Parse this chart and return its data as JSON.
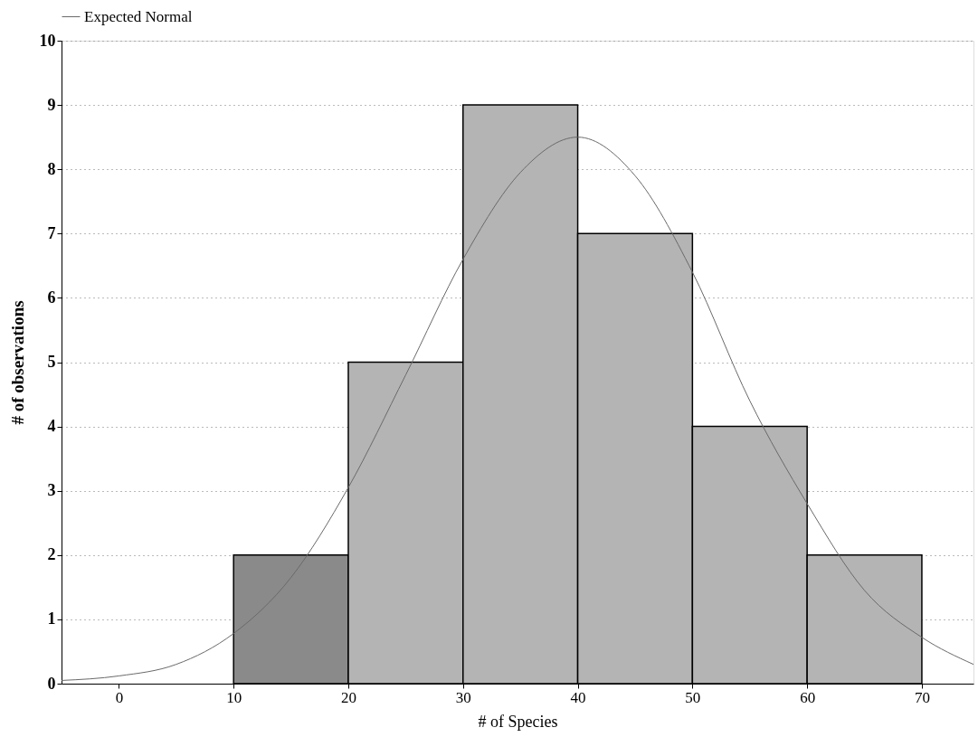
{
  "chart_data": {
    "type": "histogram",
    "xlabel": "# of Species",
    "ylabel": "# of observations",
    "bins": [
      10,
      20,
      30,
      40,
      50,
      60,
      70
    ],
    "values": [
      2,
      5,
      9,
      7,
      4,
      2
    ],
    "colors": [
      "#8a8a8a",
      "#b4b4b4",
      "#b4b4b4",
      "#b4b4b4",
      "#b4b4b4",
      "#b4b4b4"
    ],
    "series": [
      {
        "name": "Expected Normal",
        "type": "line",
        "color": "#6a6a6a",
        "line_style": "solid",
        "x": [
          -5,
          0,
          5,
          10,
          15,
          20,
          25,
          30,
          35,
          40,
          45,
          50,
          55,
          60,
          65,
          70,
          74.5
        ],
        "values": [
          0.05,
          0.12,
          0.3,
          0.78,
          1.65,
          3.05,
          4.8,
          6.6,
          7.95,
          8.5,
          7.9,
          6.4,
          4.4,
          2.8,
          1.45,
          0.72,
          0.3
        ]
      }
    ],
    "xlim": [
      -5,
      74.5
    ],
    "xticks": [
      0,
      10,
      20,
      30,
      40,
      50,
      60,
      70
    ],
    "ylim": [
      0,
      10
    ],
    "yticks": [
      0,
      1,
      2,
      3,
      4,
      5,
      6,
      7,
      8,
      9,
      10
    ],
    "grid": "y",
    "legend": "top"
  }
}
